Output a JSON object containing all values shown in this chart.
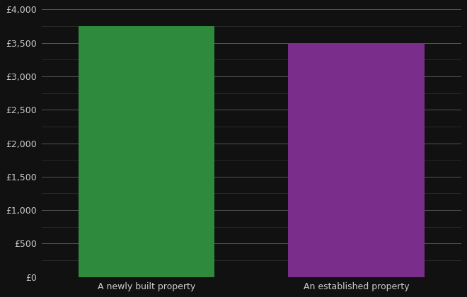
{
  "categories": [
    "A newly built property",
    "An established property"
  ],
  "values": [
    3750,
    3500
  ],
  "bar_colors": [
    "#2e8b3e",
    "#7b2d8b"
  ],
  "background_color": "#111111",
  "text_color": "#cccccc",
  "major_grid_color": "#555555",
  "minor_grid_color": "#333333",
  "ylim": [
    0,
    4000
  ],
  "ytick_major_interval": 500,
  "ytick_minor_interval": 250,
  "bar_width": 0.65
}
